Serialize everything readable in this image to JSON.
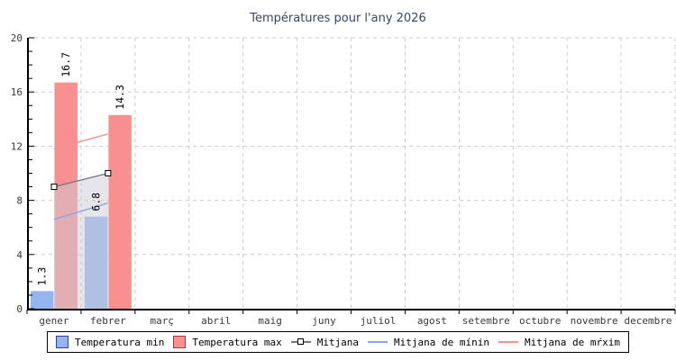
{
  "chart_data": {
    "type": "bar",
    "title": "Températures pour l'any 2026",
    "categories": [
      "gener",
      "febrer",
      "març",
      "abril",
      "maig",
      "juny",
      "juliol",
      "agost",
      "setembre",
      "octubre",
      "novembre",
      "decembre"
    ],
    "ylim": [
      0,
      20
    ],
    "y_major_step": 4,
    "y_minor_step": 1,
    "grid": "dashed",
    "legend_position": "bottom-center",
    "series": [
      {
        "name": "Temperatura min",
        "type": "bar",
        "color": "#93b4f0",
        "legend_border": "#2e4396",
        "values": [
          1.3,
          6.8,
          null,
          null,
          null,
          null,
          null,
          null,
          null,
          null,
          null,
          null
        ]
      },
      {
        "name": "Temperatura max",
        "type": "bar",
        "color": "#f89090",
        "legend_border": "#a83c3c",
        "values": [
          16.7,
          14.3,
          null,
          null,
          null,
          null,
          null,
          null,
          null,
          null,
          null,
          null
        ]
      },
      {
        "name": "Mitjana",
        "type": "line",
        "marker": "square",
        "color": "#7a7a7a",
        "area_color": "rgba(204,204,214,0.5)",
        "values": [
          9.0,
          10.0,
          null,
          null,
          null,
          null,
          null,
          null,
          null,
          null,
          null,
          null
        ]
      },
      {
        "name": "Mitjana de mínin",
        "type": "line",
        "color": "#8da5e6",
        "values": [
          6.6,
          7.8,
          null,
          null,
          null,
          null,
          null,
          null,
          null,
          null,
          null,
          null
        ]
      },
      {
        "name": "Mitjana de mŕxim",
        "type": "line",
        "color": "#f39293",
        "values": [
          11.8,
          12.9,
          null,
          null,
          null,
          null,
          null,
          null,
          null,
          null,
          null,
          null
        ]
      }
    ],
    "bar_value_labels": [
      "1.3",
      "16.7",
      "6.8",
      "14.3"
    ]
  },
  "colors": {
    "title": "#3a4565",
    "axis": "#000000",
    "gridline": "#cdcdcd",
    "tick_label": "#3a3a3a",
    "bar_label": "#000000",
    "legend_bg": "#ffffff",
    "legend_border": "#000000"
  }
}
